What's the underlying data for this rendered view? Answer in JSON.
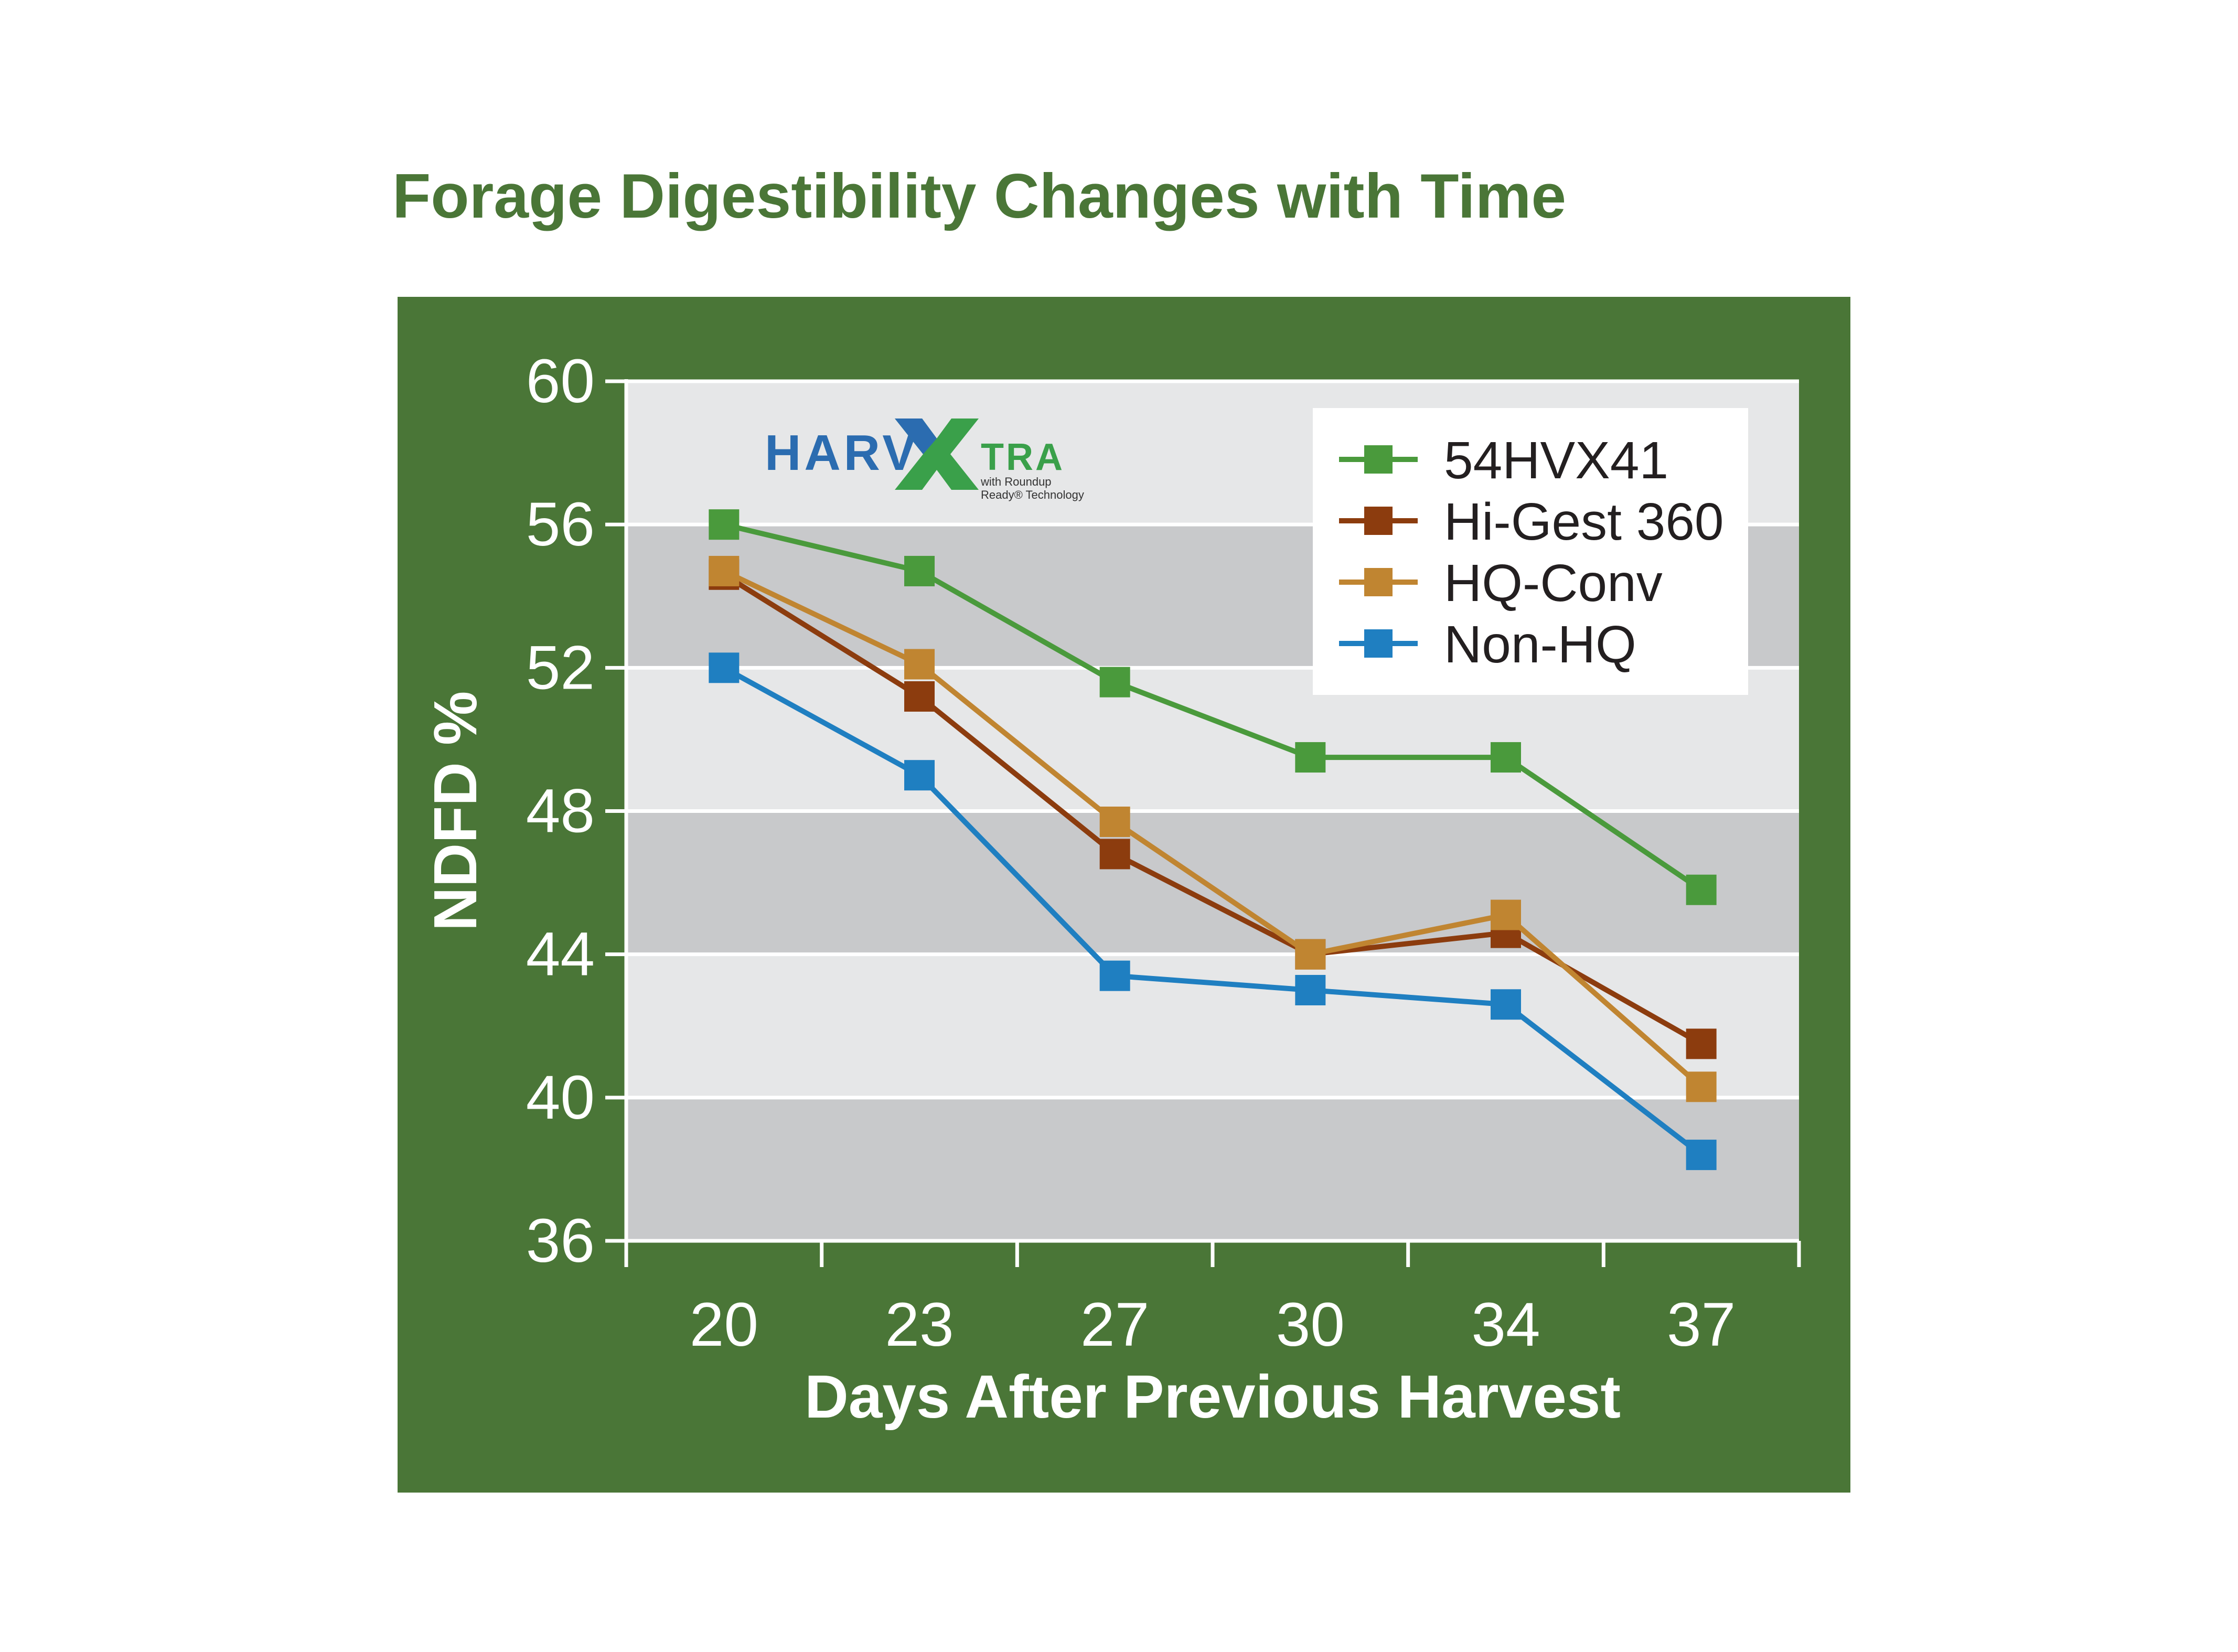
{
  "title": "Forage Digestibility Changes with Time",
  "colors": {
    "title": "#4a7637",
    "panel": "#4a7637",
    "band_light": "#e6e7e8",
    "band_dark": "#c8c9cb",
    "grid": "#ffffff",
    "axis_text": "#ffffff",
    "legend_bg": "#ffffff",
    "legend_text": "#231f20"
  },
  "logo": {
    "text_left": "HARV",
    "text_right": "TRA",
    "subtext_line1": "with Roundup",
    "subtext_line2": "Ready® Technology",
    "blue": "#2b6cb0",
    "green": "#3aa04a"
  },
  "chart_data": {
    "type": "line",
    "title": "Forage Digestibility Changes with Time",
    "xlabel": "Days After Previous Harvest",
    "ylabel": "NDFD %",
    "categories": [
      "20",
      "23",
      "27",
      "30",
      "34",
      "37"
    ],
    "y_ticks": [
      "36",
      "40",
      "44",
      "48",
      "52",
      "56",
      "60"
    ],
    "ylim": [
      36,
      60
    ],
    "legend_position": "top-right",
    "series": [
      {
        "name": "54HVX41",
        "color": "#4a9a3c",
        "values": [
          56.0,
          54.7,
          51.6,
          49.5,
          49.5,
          45.8
        ]
      },
      {
        "name": "Hi-Gest 360",
        "color": "#8c3c0e",
        "values": [
          54.6,
          51.2,
          46.8,
          44.0,
          44.6,
          41.5
        ]
      },
      {
        "name": "HQ-Conv",
        "color": "#c08531",
        "values": [
          54.7,
          52.1,
          47.7,
          44.0,
          45.1,
          40.3
        ]
      },
      {
        "name": "Non-HQ",
        "color": "#1f7fc1",
        "values": [
          52.0,
          49.0,
          43.4,
          43.0,
          42.6,
          38.4
        ]
      }
    ]
  }
}
